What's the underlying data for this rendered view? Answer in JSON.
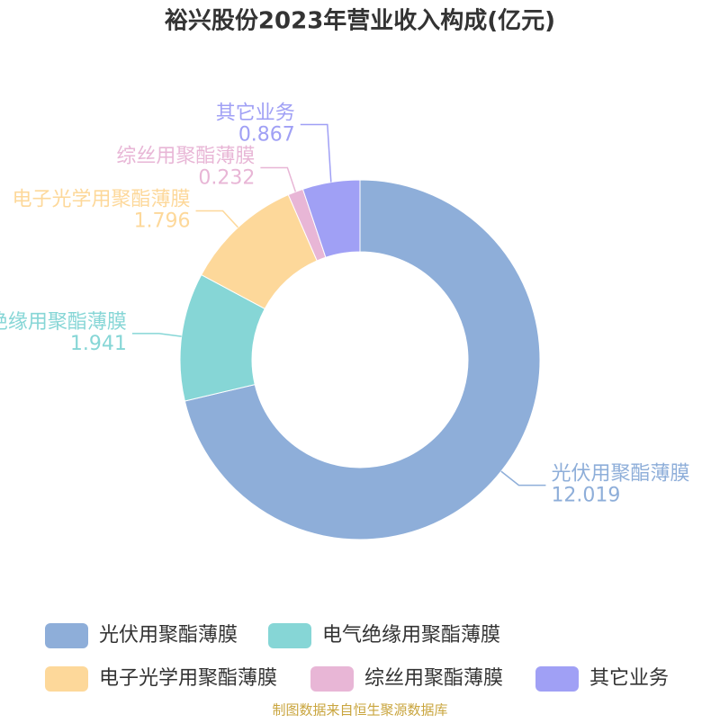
{
  "chart_data": {
    "type": "donut",
    "title": "裕兴股份2023年营业收入构成(亿元)",
    "categories": [
      "光伏用聚酯薄膜",
      "电气绝缘用聚酯薄膜",
      "电子光学用聚酯薄膜",
      "综丝用聚酯薄膜",
      "其它业务"
    ],
    "values": [
      12.019,
      1.941,
      1.796,
      0.232,
      0.867
    ],
    "colors": [
      "#8eaed9",
      "#86d6d6",
      "#fdd89a",
      "#e8b6d6",
      "#a0a0f5"
    ],
    "source": "制图数据来自恒生聚源数据库"
  }
}
